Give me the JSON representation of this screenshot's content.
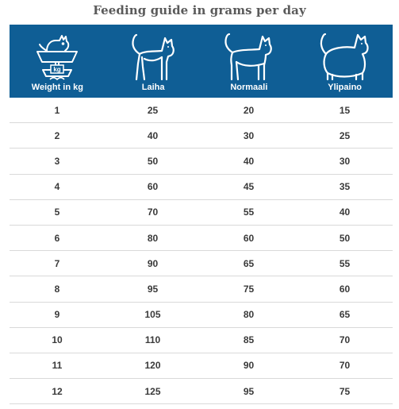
{
  "title": "Feeding guide in grams per day",
  "header": {
    "background": "#0f5e95",
    "columns": [
      {
        "label": "Weight in kg",
        "icon": "scale-with-cat-icon",
        "scale_text": "kg"
      },
      {
        "label": "Laiha",
        "icon": "thin-cat-icon"
      },
      {
        "label": "Normaali",
        "icon": "normal-cat-icon"
      },
      {
        "label": "Ylipaino",
        "icon": "overweight-cat-icon"
      }
    ]
  },
  "rows": [
    [
      "1",
      "25",
      "20",
      "15"
    ],
    [
      "2",
      "40",
      "30",
      "25"
    ],
    [
      "3",
      "50",
      "40",
      "30"
    ],
    [
      "4",
      "60",
      "45",
      "35"
    ],
    [
      "5",
      "70",
      "55",
      "40"
    ],
    [
      "6",
      "80",
      "60",
      "50"
    ],
    [
      "7",
      "90",
      "65",
      "55"
    ],
    [
      "8",
      "95",
      "75",
      "60"
    ],
    [
      "9",
      "105",
      "80",
      "65"
    ],
    [
      "10",
      "110",
      "85",
      "70"
    ],
    [
      "11",
      "120",
      "90",
      "70"
    ],
    [
      "12",
      "125",
      "95",
      "75"
    ]
  ]
}
